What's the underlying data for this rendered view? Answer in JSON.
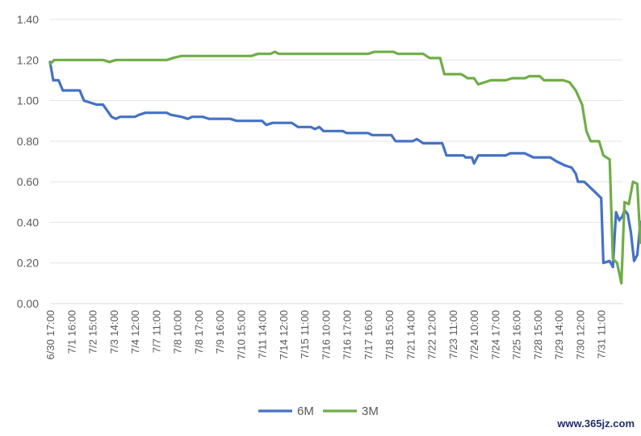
{
  "chart_data": {
    "type": "line",
    "title": "",
    "xlabel": "",
    "ylabel": "",
    "ylim": [
      0,
      1.4
    ],
    "yticks": [
      "0.00",
      "0.20",
      "0.40",
      "0.60",
      "0.80",
      "1.00",
      "1.20",
      "1.40"
    ],
    "grid": "horizontal",
    "legend": "bottom",
    "x_ticks": [
      "6/30 17:00",
      "7/1 16:00",
      "7/2 15:00",
      "7/3 14:00",
      "7/4 12:00",
      "7/7 11:00",
      "7/8 10:00",
      "7/8 17:00",
      "7/9 16:00",
      "7/10 15:00",
      "7/11 14:00",
      "7/14 12:00",
      "7/15 11:00",
      "7/16 10:00",
      "7/16 17:00",
      "7/17 16:00",
      "7/18 15:00",
      "7/21 14:00",
      "7/22 12:00",
      "7/23 11:00",
      "7/24 10:00",
      "7/24 17:00",
      "7/25 16:00",
      "7/28 15:00",
      "7/29 14:00",
      "7/30 12:00",
      "7/31 11:00"
    ],
    "x_index_range": [
      0,
      27
    ],
    "series": [
      {
        "name": "6M",
        "color": "#4472c4",
        "points": [
          [
            0,
            1.19
          ],
          [
            0.15,
            1.1
          ],
          [
            0.4,
            1.1
          ],
          [
            0.6,
            1.05
          ],
          [
            1.4,
            1.05
          ],
          [
            1.6,
            1.0
          ],
          [
            2.2,
            0.98
          ],
          [
            2.5,
            0.98
          ],
          [
            2.9,
            0.92
          ],
          [
            3.1,
            0.91
          ],
          [
            3.3,
            0.92
          ],
          [
            4.0,
            0.92
          ],
          [
            4.2,
            0.93
          ],
          [
            4.5,
            0.94
          ],
          [
            5.5,
            0.94
          ],
          [
            5.7,
            0.93
          ],
          [
            6.2,
            0.92
          ],
          [
            6.5,
            0.91
          ],
          [
            6.7,
            0.92
          ],
          [
            7.2,
            0.92
          ],
          [
            7.5,
            0.91
          ],
          [
            8.5,
            0.91
          ],
          [
            8.8,
            0.9
          ],
          [
            10.0,
            0.9
          ],
          [
            10.2,
            0.88
          ],
          [
            10.5,
            0.89
          ],
          [
            11.4,
            0.89
          ],
          [
            11.7,
            0.87
          ],
          [
            12.3,
            0.87
          ],
          [
            12.5,
            0.86
          ],
          [
            12.7,
            0.87
          ],
          [
            12.9,
            0.85
          ],
          [
            13.8,
            0.85
          ],
          [
            14.0,
            0.84
          ],
          [
            15.0,
            0.84
          ],
          [
            15.2,
            0.83
          ],
          [
            16.1,
            0.83
          ],
          [
            16.3,
            0.8
          ],
          [
            17.1,
            0.8
          ],
          [
            17.3,
            0.81
          ],
          [
            17.6,
            0.79
          ],
          [
            18.5,
            0.79
          ],
          [
            18.7,
            0.73
          ],
          [
            19.5,
            0.73
          ],
          [
            19.6,
            0.72
          ],
          [
            19.9,
            0.72
          ],
          [
            20.0,
            0.69
          ],
          [
            20.2,
            0.73
          ],
          [
            21.5,
            0.73
          ],
          [
            21.7,
            0.74
          ],
          [
            22.4,
            0.74
          ],
          [
            22.8,
            0.72
          ],
          [
            23.6,
            0.72
          ],
          [
            23.9,
            0.7
          ],
          [
            24.3,
            0.68
          ],
          [
            24.6,
            0.67
          ],
          [
            24.8,
            0.64
          ],
          [
            24.9,
            0.6
          ],
          [
            25.2,
            0.6
          ],
          [
            25.4,
            0.58
          ],
          [
            25.7,
            0.55
          ],
          [
            26.0,
            0.52
          ],
          [
            26.1,
            0.2
          ],
          [
            26.4,
            0.21
          ],
          [
            26.55,
            0.18
          ],
          [
            26.7,
            0.45
          ],
          [
            26.85,
            0.41
          ],
          [
            27.0,
            0.43
          ],
          [
            27.1,
            0.46
          ],
          [
            27.25,
            0.44
          ],
          [
            27.4,
            0.35
          ],
          [
            27.55,
            0.21
          ],
          [
            27.7,
            0.24
          ],
          [
            27.85,
            0.4
          ],
          [
            28.0,
            0.41
          ]
        ]
      },
      {
        "name": "3M",
        "color": "#70ad47",
        "points": [
          [
            0,
            1.18
          ],
          [
            0.2,
            1.2
          ],
          [
            2.5,
            1.2
          ],
          [
            2.8,
            1.19
          ],
          [
            3.1,
            1.2
          ],
          [
            5.5,
            1.2
          ],
          [
            5.8,
            1.21
          ],
          [
            6.2,
            1.22
          ],
          [
            9.5,
            1.22
          ],
          [
            9.8,
            1.23
          ],
          [
            10.4,
            1.23
          ],
          [
            10.6,
            1.24
          ],
          [
            10.8,
            1.23
          ],
          [
            13.5,
            1.23
          ],
          [
            15.0,
            1.23
          ],
          [
            15.3,
            1.24
          ],
          [
            16.2,
            1.24
          ],
          [
            16.4,
            1.23
          ],
          [
            17.6,
            1.23
          ],
          [
            17.9,
            1.21
          ],
          [
            18.4,
            1.21
          ],
          [
            18.6,
            1.13
          ],
          [
            19.4,
            1.13
          ],
          [
            19.7,
            1.11
          ],
          [
            20.0,
            1.11
          ],
          [
            20.2,
            1.08
          ],
          [
            20.5,
            1.09
          ],
          [
            20.8,
            1.1
          ],
          [
            21.5,
            1.1
          ],
          [
            21.8,
            1.11
          ],
          [
            22.4,
            1.11
          ],
          [
            22.6,
            1.12
          ],
          [
            23.1,
            1.12
          ],
          [
            23.3,
            1.1
          ],
          [
            24.2,
            1.1
          ],
          [
            24.5,
            1.09
          ],
          [
            24.8,
            1.05
          ],
          [
            25.1,
            0.98
          ],
          [
            25.3,
            0.85
          ],
          [
            25.5,
            0.8
          ],
          [
            25.9,
            0.8
          ],
          [
            26.1,
            0.73
          ],
          [
            26.4,
            0.71
          ],
          [
            26.55,
            0.22
          ],
          [
            26.75,
            0.2
          ],
          [
            26.95,
            0.1
          ],
          [
            27.1,
            0.5
          ],
          [
            27.3,
            0.49
          ],
          [
            27.5,
            0.6
          ],
          [
            27.7,
            0.59
          ],
          [
            27.85,
            0.3
          ],
          [
            28.0,
            0.3
          ],
          [
            28.2,
            0.43
          ]
        ]
      }
    ]
  },
  "watermark": "www.365jz.com"
}
